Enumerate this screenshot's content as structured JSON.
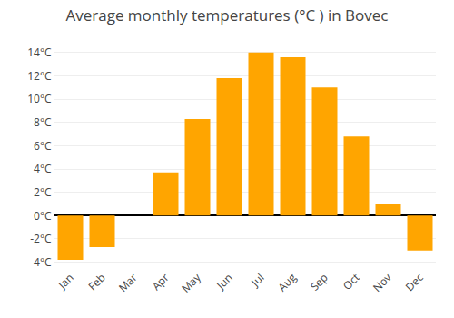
{
  "chart_data": {
    "type": "bar",
    "title": "Average monthly temperatures (°C ) in Bovec",
    "categories": [
      "Jan",
      "Feb",
      "Mar",
      "Apr",
      "May",
      "Jun",
      "Jul",
      "Aug",
      "Sep",
      "Oct",
      "Nov",
      "Dec"
    ],
    "values": [
      -3.8,
      -2.7,
      0.0,
      3.7,
      8.3,
      11.8,
      14.0,
      13.6,
      11.0,
      6.8,
      1.0,
      -3.0
    ],
    "color": "#FFA500",
    "ylim": [
      -4.5,
      15.0
    ],
    "yticks": [
      {
        "value": -4,
        "label": "-4°C"
      },
      {
        "value": -2,
        "label": "-2°C"
      },
      {
        "value": 0,
        "label": "0°C"
      },
      {
        "value": 2,
        "label": "2°C"
      },
      {
        "value": 4,
        "label": "4°C"
      },
      {
        "value": 6,
        "label": "6°C"
      },
      {
        "value": 8,
        "label": "8°C"
      },
      {
        "value": 10,
        "label": "10°C"
      },
      {
        "value": 12,
        "label": "12°C"
      },
      {
        "value": 14,
        "label": "14°C"
      }
    ],
    "grid": true
  }
}
